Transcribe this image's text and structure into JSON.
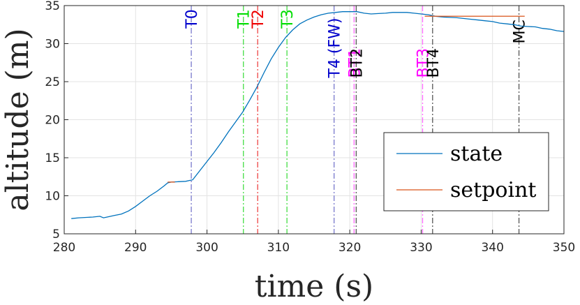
{
  "chart_data": {
    "type": "line",
    "xlabel": "time (s)",
    "ylabel": "altitude (m)",
    "xlim": [
      280,
      350
    ],
    "ylim": [
      5,
      35
    ],
    "xticks": [
      280,
      290,
      300,
      310,
      320,
      330,
      340,
      350
    ],
    "yticks": [
      5,
      10,
      15,
      20,
      25,
      30,
      35
    ],
    "grid": true,
    "legend_position": "bottom-right",
    "series": [
      {
        "name": "state",
        "color": "#0072bd",
        "x": [
          281,
          282,
          284,
          285,
          285.5,
          286,
          287,
          288,
          289,
          290,
          291,
          292,
          293,
          294,
          294.5,
          295,
          296,
          297,
          298,
          299,
          300,
          301,
          302,
          303,
          304,
          305,
          306,
          307,
          308,
          309,
          310,
          311,
          312,
          313,
          314,
          315,
          316,
          317,
          318,
          319,
          320,
          321,
          322,
          323,
          324,
          325,
          326,
          327,
          328,
          329,
          330,
          331,
          332,
          333,
          334,
          335,
          336,
          337,
          338,
          339,
          340,
          341,
          342,
          343,
          344,
          345,
          346,
          347,
          348,
          349,
          350
        ],
        "y": [
          7.0,
          7.1,
          7.2,
          7.3,
          7.1,
          7.2,
          7.4,
          7.6,
          8.0,
          8.6,
          9.3,
          10.0,
          10.6,
          11.3,
          11.7,
          11.8,
          11.85,
          11.9,
          12.1,
          13.3,
          14.5,
          15.7,
          17.0,
          18.4,
          19.7,
          21.0,
          22.6,
          24.3,
          26.2,
          28.0,
          29.5,
          30.8,
          31.8,
          32.6,
          33.1,
          33.5,
          33.8,
          34.0,
          34.1,
          34.2,
          34.2,
          34.2,
          34.0,
          33.9,
          33.95,
          34.0,
          34.1,
          34.1,
          34.1,
          34.0,
          33.9,
          33.8,
          33.6,
          33.5,
          33.45,
          33.4,
          33.3,
          33.2,
          33.1,
          33.0,
          32.9,
          32.7,
          32.6,
          32.5,
          32.3,
          32.25,
          32.2,
          32.0,
          31.9,
          31.7,
          31.6
        ]
      },
      {
        "name": "setpoint",
        "color": "#d95319",
        "segments": [
          {
            "x": [
              294.5,
              295.5
            ],
            "y": [
              11.8,
              11.8
            ]
          },
          {
            "x": [
              330.5,
              344.5
            ],
            "y": [
              33.6,
              33.6
            ]
          }
        ]
      }
    ],
    "annotations": [
      {
        "label": "T0",
        "x": 297.8,
        "color": "#0000cc",
        "line_color": "#7777cc",
        "label_y": 32.0
      },
      {
        "label": "T1",
        "x": 305.1,
        "color": "#00dd00",
        "line_color": "#44dd44",
        "label_y": 32.0
      },
      {
        "label": "T2",
        "x": 307.1,
        "color": "#ee0000",
        "line_color": "#ee4444",
        "label_y": 32.0
      },
      {
        "label": "T3",
        "x": 311.2,
        "color": "#00dd00",
        "line_color": "#44dd44",
        "label_y": 32.0
      },
      {
        "label": "T4 (FW)",
        "x": 317.8,
        "color": "#0000cc",
        "line_color": "#7777cc",
        "label_y": 25.5
      },
      {
        "label": "BT1",
        "x": 320.6,
        "color": "#ff00ff",
        "line_color": "#ff66ff",
        "label_y": 25.5
      },
      {
        "label": "BT2",
        "x": 320.9,
        "color": "#000000",
        "line_color": "#555555",
        "label_y": 25.5
      },
      {
        "label": "BT3",
        "x": 330.2,
        "color": "#ff00ff",
        "line_color": "#ff66ff",
        "label_y": 25.5
      },
      {
        "label": "BT4",
        "x": 331.6,
        "color": "#000000",
        "line_color": "#555555",
        "label_y": 25.5
      },
      {
        "label": "MC",
        "x": 343.7,
        "color": "#000000",
        "line_color": "#555555",
        "label_y": 30.0
      }
    ]
  }
}
